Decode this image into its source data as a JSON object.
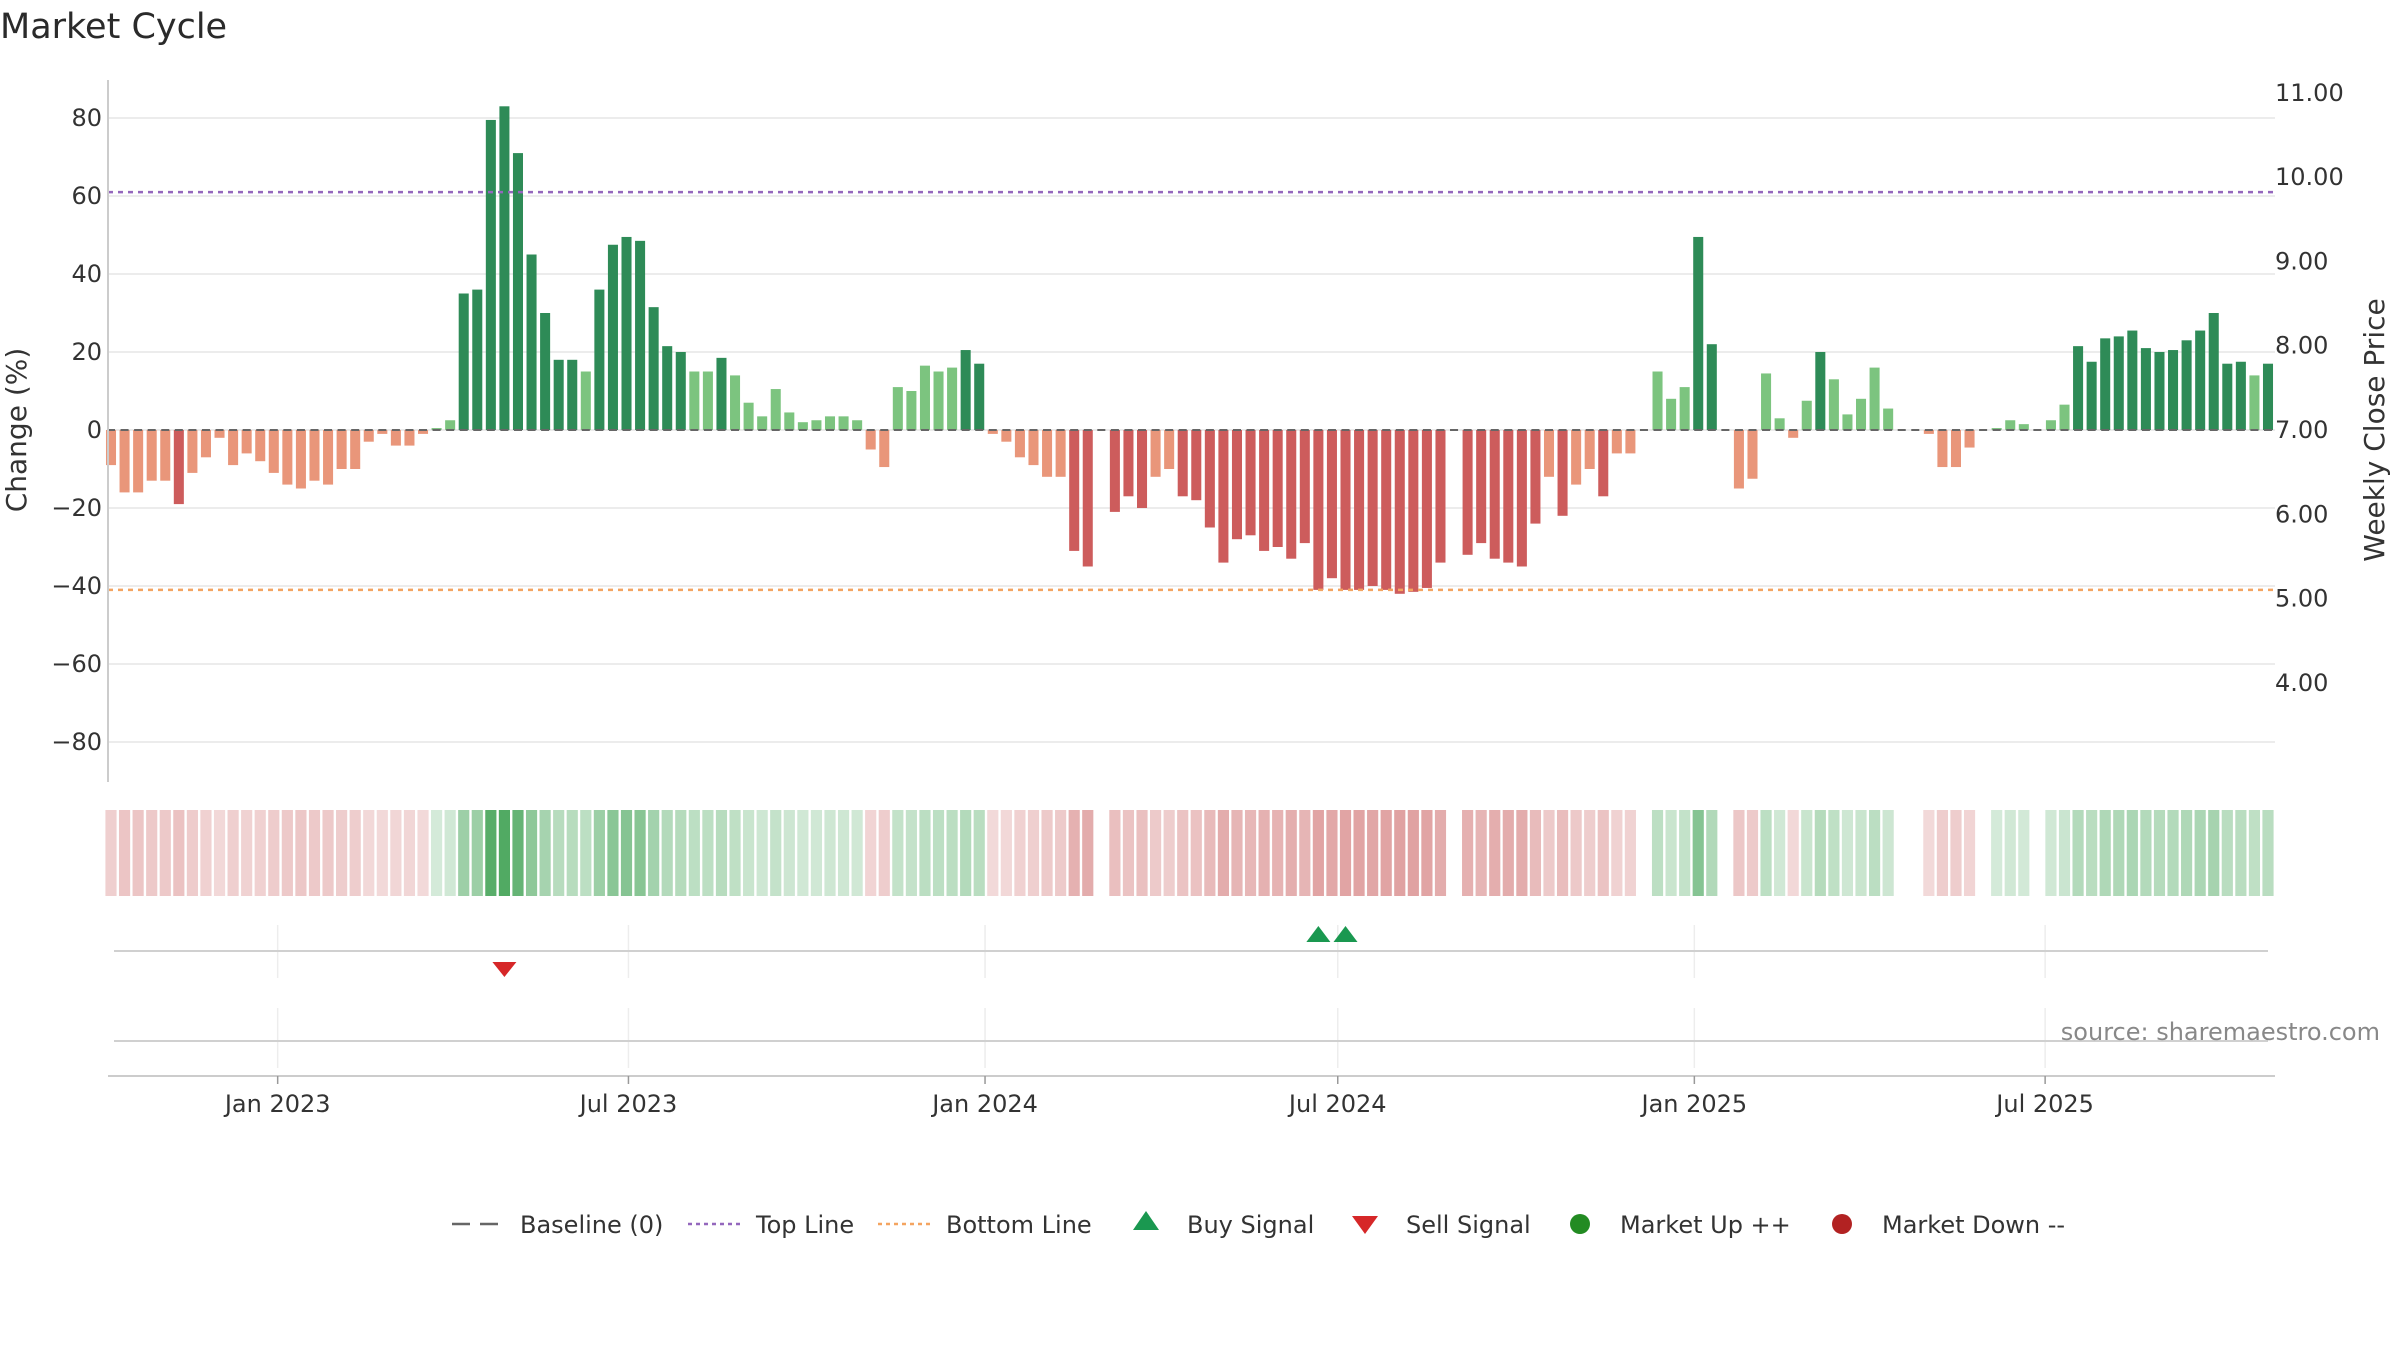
{
  "colors": {
    "pos_dark": "#2e8b57",
    "pos_light": "#7cc47f",
    "neg_dark": "#cd5c5c",
    "neg_light": "#e9967a",
    "top_line": "#9467bd",
    "bottom_line": "#f4a460",
    "baseline": "#666666",
    "buy": "#1a9850",
    "sell": "#d62728",
    "market_up": "#228b22",
    "market_down": "#b22222"
  },
  "chart_data": {
    "type": "bar",
    "title": "Market Cycle",
    "ylabel": "Change (%)",
    "y2label": "Weekly Close Price",
    "ylim": [
      -90,
      90
    ],
    "y_ticks": [
      "80",
      "60",
      "40",
      "20",
      "0",
      "−20",
      "−40",
      "−60",
      "−80"
    ],
    "y_tick_values": [
      80,
      60,
      40,
      20,
      0,
      -20,
      -40,
      -60,
      -80
    ],
    "y2_ticks": [
      "11.00",
      "10.00",
      "9.00",
      "8.00",
      "7.00",
      "6.00",
      "5.00",
      "4.00"
    ],
    "y2_tick_values": [
      11,
      10,
      9,
      8,
      7,
      6,
      5,
      4
    ],
    "x_ticks": [
      "Jan 2023",
      "Jul 2023",
      "Jan 2024",
      "Jul 2024",
      "Jan 2025",
      "Jul 2025"
    ],
    "top_line": 61,
    "bottom_line": -41,
    "start": "2022-10-07",
    "week_days": 7,
    "values": [
      -9,
      -16,
      -16,
      -13,
      -13,
      -19,
      -11,
      -7,
      -2,
      -9,
      -6,
      -8,
      -11,
      -14,
      -15,
      -13,
      -14,
      -10,
      -10,
      -3,
      -1,
      -4,
      -4,
      -1,
      0.5,
      2.5,
      35,
      36,
      79.5,
      83,
      71,
      45,
      30,
      18,
      18,
      15,
      36,
      47.5,
      49.5,
      48.5,
      31.5,
      21.5,
      20,
      15,
      15,
      18.5,
      14,
      7,
      3.5,
      10.5,
      4.5,
      2,
      2.5,
      3.5,
      3.5,
      2.5,
      -5,
      -9.5,
      11,
      10,
      16.5,
      15,
      16,
      20.5,
      17,
      -1,
      -3,
      -7,
      -9,
      -12,
      -12,
      -31,
      -35,
      0,
      -21,
      -17,
      -20,
      -12,
      -10,
      -17,
      -18,
      -25,
      -34,
      -28,
      -27,
      -31,
      -30,
      -33,
      -29,
      -41,
      -38,
      -41,
      -41,
      -40,
      -41,
      -42,
      -41.5,
      -40.5,
      -34,
      0,
      -32,
      -29,
      -33,
      -34,
      -35,
      -24,
      -12,
      -22,
      -14,
      -10,
      -17,
      -6,
      -6,
      0,
      15,
      8,
      11,
      49.5,
      22,
      0,
      -15,
      -12.5,
      14.5,
      3,
      -2,
      7.5,
      20,
      13,
      4,
      8,
      16,
      5.5,
      0,
      0,
      -1,
      -9.5,
      -9.5,
      -4.5,
      0,
      0.5,
      2.5,
      1.5,
      0,
      2.5,
      6.5,
      21.5,
      17.5,
      23.5,
      24,
      25.5,
      21,
      20,
      20.5,
      23,
      25.5,
      30,
      17,
      17.5,
      14,
      17
    ]
  },
  "signals": {
    "buy": [
      "2024-06-21",
      "2024-07-05"
    ],
    "sell": [
      "2023-04-28"
    ]
  },
  "legend": [
    {
      "key": "baseline",
      "label": "Baseline (0)"
    },
    {
      "key": "top_line",
      "label": "Top Line"
    },
    {
      "key": "bottom_line",
      "label": "Bottom Line"
    },
    {
      "key": "buy",
      "label": "Buy Signal"
    },
    {
      "key": "sell",
      "label": "Sell Signal"
    },
    {
      "key": "market_up",
      "label": "Market Up ++"
    },
    {
      "key": "market_down",
      "label": "Market Down --"
    }
  ],
  "source": "source: sharemaestro.com"
}
